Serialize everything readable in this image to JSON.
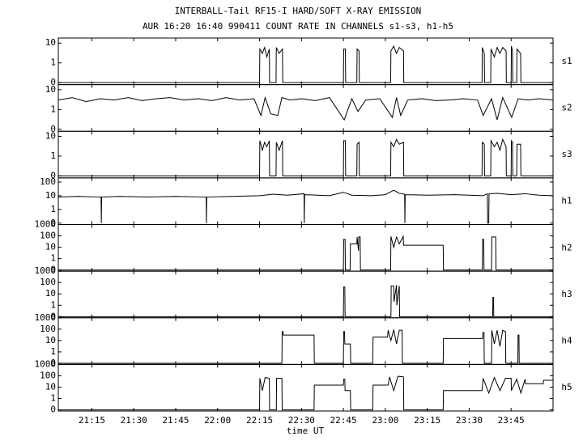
{
  "chart_data": {
    "type": "line",
    "title": "INTERBALL-Tail RF15-I HARD/SOFT X-RAY EMISSION",
    "subtitle": "AUR 16:20 16:40 990411  COUNT RATE IN CHANNELS s1-s3, h1-h5",
    "xlabel": "time UT",
    "xlim": [
      1263,
      1440
    ],
    "xticks": [
      {
        "value": 1275,
        "label": "21:15"
      },
      {
        "value": 1290,
        "label": "21:30"
      },
      {
        "value": 1305,
        "label": "21:45"
      },
      {
        "value": 1320,
        "label": "22:00"
      },
      {
        "value": 1335,
        "label": "22:15"
      },
      {
        "value": 1350,
        "label": "22:30"
      },
      {
        "value": 1365,
        "label": "22:45"
      },
      {
        "value": 1380,
        "label": "23:00"
      },
      {
        "value": 1395,
        "label": "23:15"
      },
      {
        "value": 1410,
        "label": "23:30"
      },
      {
        "value": 1425,
        "label": "23:45"
      }
    ],
    "color": "#000000",
    "panels": [
      {
        "name": "s1",
        "ylim": [
          0,
          18
        ],
        "yticks": [
          0,
          1,
          10
        ],
        "x": [
          1263,
          1335,
          1335.1,
          1336,
          1336.8,
          1337.6,
          1338.5,
          1338.6,
          1340.9,
          1341,
          1342,
          1343.2,
          1343.3,
          1365,
          1365.1,
          1365.7,
          1365.8,
          1369.8,
          1369.9,
          1370.6,
          1370.7,
          1381.9,
          1382,
          1383,
          1384,
          1385,
          1386.5,
          1386.6,
          1414.6,
          1414.7,
          1415.4,
          1415.5,
          1417.7,
          1417.8,
          1419,
          1420,
          1421,
          1422,
          1423.2,
          1423.3,
          1425,
          1425.1,
          1425.5,
          1425.6,
          1427,
          1427.1,
          1428.4,
          1428.5,
          1440
        ],
        "values": [
          0,
          0,
          5,
          3,
          6,
          2,
          5,
          0,
          0,
          6,
          3,
          5,
          0,
          0,
          5,
          5,
          0,
          0,
          5,
          4,
          0,
          0,
          4,
          7,
          3,
          6,
          4,
          0,
          0,
          6,
          3,
          0,
          0,
          5,
          2,
          6,
          3,
          6,
          4,
          0,
          0,
          7,
          4,
          0,
          0,
          5,
          3,
          0,
          0
        ]
      },
      {
        "name": "s2",
        "ylim": [
          0,
          18
        ],
        "yticks": [
          0,
          1,
          10
        ],
        "x": [
          1263,
          1268,
          1273,
          1278,
          1283,
          1288,
          1293,
          1298,
          1303,
          1308,
          1313,
          1318,
          1323,
          1328,
          1333,
          1335.5,
          1337,
          1339,
          1341.5,
          1343,
          1346,
          1350,
          1355,
          1360,
          1365.3,
          1368,
          1370.2,
          1373,
          1378,
          1382.5,
          1384,
          1385.5,
          1388,
          1393,
          1398,
          1403,
          1408,
          1413,
          1415,
          1418,
          1420,
          1422,
          1425.2,
          1427.5,
          1431,
          1435,
          1440
        ],
        "values": [
          3,
          4,
          2.5,
          3.5,
          3,
          4,
          2.8,
          3.5,
          4,
          3,
          3.5,
          2.8,
          4,
          3,
          3.5,
          0.5,
          4,
          0.6,
          0.5,
          4,
          3,
          3.5,
          2.8,
          4,
          0.3,
          3.5,
          0.8,
          3,
          3.5,
          0.4,
          4,
          0.5,
          3,
          3.5,
          2.8,
          3,
          3.5,
          3,
          0.5,
          3.5,
          0.3,
          4,
          0.4,
          3.5,
          3,
          3.5,
          3
        ]
      },
      {
        "name": "s3",
        "ylim": [
          0,
          18
        ],
        "yticks": [
          0,
          1,
          10
        ],
        "x": [
          1263,
          1335,
          1335.1,
          1336,
          1336.8,
          1337.6,
          1338.5,
          1338.6,
          1340.9,
          1341,
          1342,
          1343.2,
          1343.3,
          1365,
          1365.1,
          1365.7,
          1365.8,
          1369.8,
          1369.9,
          1370.6,
          1370.7,
          1381.9,
          1382,
          1383,
          1384,
          1385,
          1386.5,
          1386.6,
          1414.6,
          1414.7,
          1415.4,
          1415.5,
          1417.7,
          1417.8,
          1419,
          1420,
          1421,
          1422,
          1423.2,
          1423.3,
          1425,
          1425.1,
          1425.5,
          1425.6,
          1427,
          1427.1,
          1428.4,
          1428.5,
          1440
        ],
        "values": [
          0,
          0,
          6,
          2,
          5,
          3,
          6,
          0,
          0,
          5,
          2,
          6,
          0,
          0,
          6,
          6,
          0,
          0,
          4,
          5,
          0,
          0,
          5,
          3,
          7,
          4,
          5,
          0,
          0,
          5,
          4,
          0,
          0,
          6,
          3,
          5,
          2,
          7,
          3,
          0,
          0,
          6,
          5,
          0,
          0,
          4,
          4,
          0,
          0
        ]
      },
      {
        "name": "h1",
        "ylim": [
          0,
          200
        ],
        "yticks": [
          0,
          1,
          10,
          100
        ],
        "x": [
          1263,
          1270,
          1278.3,
          1278.4,
          1278.5,
          1285,
          1295,
          1305,
          1315.9,
          1316,
          1316.1,
          1325,
          1335,
          1340,
          1345,
          1350.9,
          1351,
          1351.1,
          1360,
          1365,
          1368,
          1375,
          1380,
          1383,
          1385,
          1386.9,
          1387,
          1387.1,
          1395,
          1405,
          1415,
          1416.5,
          1416.6,
          1417,
          1417.1,
          1420,
          1425,
          1430,
          1435,
          1440
        ],
        "values": [
          8,
          9,
          8,
          0,
          8,
          9,
          8,
          9,
          8,
          0,
          8,
          9,
          10,
          13,
          11,
          14,
          0,
          12,
          10,
          18,
          11,
          10,
          12,
          25,
          15,
          13,
          0,
          12,
          11,
          12,
          10,
          14,
          0,
          0,
          14,
          15,
          12,
          14,
          11,
          10
        ]
      },
      {
        "name": "h2",
        "ylim": [
          0,
          1000
        ],
        "yticks": [
          0,
          1,
          10,
          100,
          1000
        ],
        "x": [
          1263,
          1365,
          1365.1,
          1365.6,
          1365.7,
          1367.4,
          1367.5,
          1369.8,
          1369.9,
          1370.4,
          1370.5,
          1371,
          1371.1,
          1381.9,
          1382,
          1383,
          1384,
          1385,
          1386.4,
          1386.5,
          1400.7,
          1400.8,
          1414.7,
          1414.8,
          1415.2,
          1415.3,
          1418,
          1418.1,
          1419.5,
          1419.6,
          1440
        ],
        "values": [
          0,
          0,
          50,
          50,
          0,
          0,
          20,
          20,
          80,
          5,
          80,
          80,
          0,
          0,
          90,
          10,
          80,
          20,
          90,
          15,
          15,
          0,
          0,
          50,
          50,
          0,
          0,
          80,
          80,
          0,
          0
        ]
      },
      {
        "name": "h3",
        "ylim": [
          0,
          1000
        ],
        "yticks": [
          0,
          1,
          10,
          100,
          1000
        ],
        "x": [
          1263,
          1365,
          1365.1,
          1365.5,
          1365.6,
          1382,
          1382.1,
          1383,
          1383.1,
          1384,
          1384.1,
          1385,
          1385.1,
          1418.4,
          1418.5,
          1418.7,
          1418.8,
          1440
        ],
        "values": [
          0,
          0,
          40,
          40,
          0,
          0,
          50,
          50,
          2,
          60,
          1,
          50,
          0,
          0,
          5,
          5,
          0,
          0
        ]
      },
      {
        "name": "h4",
        "ylim": [
          0,
          1000
        ],
        "yticks": [
          0,
          1,
          10,
          100,
          1000
        ],
        "x": [
          1263,
          1343,
          1343.1,
          1343.4,
          1343.5,
          1354.5,
          1354.6,
          1365,
          1365.1,
          1365.4,
          1365.5,
          1367.5,
          1367.6,
          1375.5,
          1375.6,
          1380.8,
          1381,
          1382,
          1383,
          1384,
          1385,
          1386,
          1386.1,
          1400.7,
          1400.8,
          1414.8,
          1414.9,
          1415.3,
          1415.4,
          1418,
          1418.1,
          1419,
          1420,
          1421,
          1422,
          1423,
          1423.1,
          1427.4,
          1427.5,
          1427.8,
          1427.9,
          1440
        ],
        "values": [
          0,
          0,
          60,
          60,
          30,
          30,
          0,
          0,
          60,
          60,
          5,
          5,
          0,
          0,
          20,
          20,
          80,
          10,
          90,
          5,
          80,
          80,
          0,
          0,
          15,
          15,
          50,
          50,
          0,
          0,
          80,
          5,
          80,
          3,
          80,
          60,
          0,
          0,
          30,
          30,
          0,
          0
        ]
      },
      {
        "name": "h5",
        "ylim": [
          0,
          1000
        ],
        "yticks": [
          0,
          1,
          10,
          100,
          1000
        ],
        "x": [
          1263,
          1335,
          1335.1,
          1336,
          1337,
          1338.5,
          1338.6,
          1341,
          1341.1,
          1343,
          1343.1,
          1354.5,
          1354.6,
          1365,
          1365.1,
          1365.5,
          1365.6,
          1367.5,
          1367.6,
          1375.5,
          1375.6,
          1381,
          1381.5,
          1383,
          1384.5,
          1386.5,
          1386.6,
          1400.7,
          1400.8,
          1414.6,
          1415,
          1417,
          1419,
          1421,
          1423,
          1425,
          1425.1,
          1427,
          1428.5,
          1430,
          1430.1,
          1436.5,
          1436.6,
          1440
        ],
        "values": [
          0,
          0,
          60,
          5,
          70,
          60,
          0,
          0,
          60,
          60,
          0,
          0,
          15,
          15,
          50,
          50,
          5,
          5,
          0,
          0,
          15,
          15,
          80,
          5,
          90,
          80,
          0,
          0,
          5,
          5,
          60,
          3,
          70,
          5,
          60,
          60,
          5,
          50,
          3,
          50,
          20,
          20,
          40,
          40
        ]
      }
    ]
  }
}
